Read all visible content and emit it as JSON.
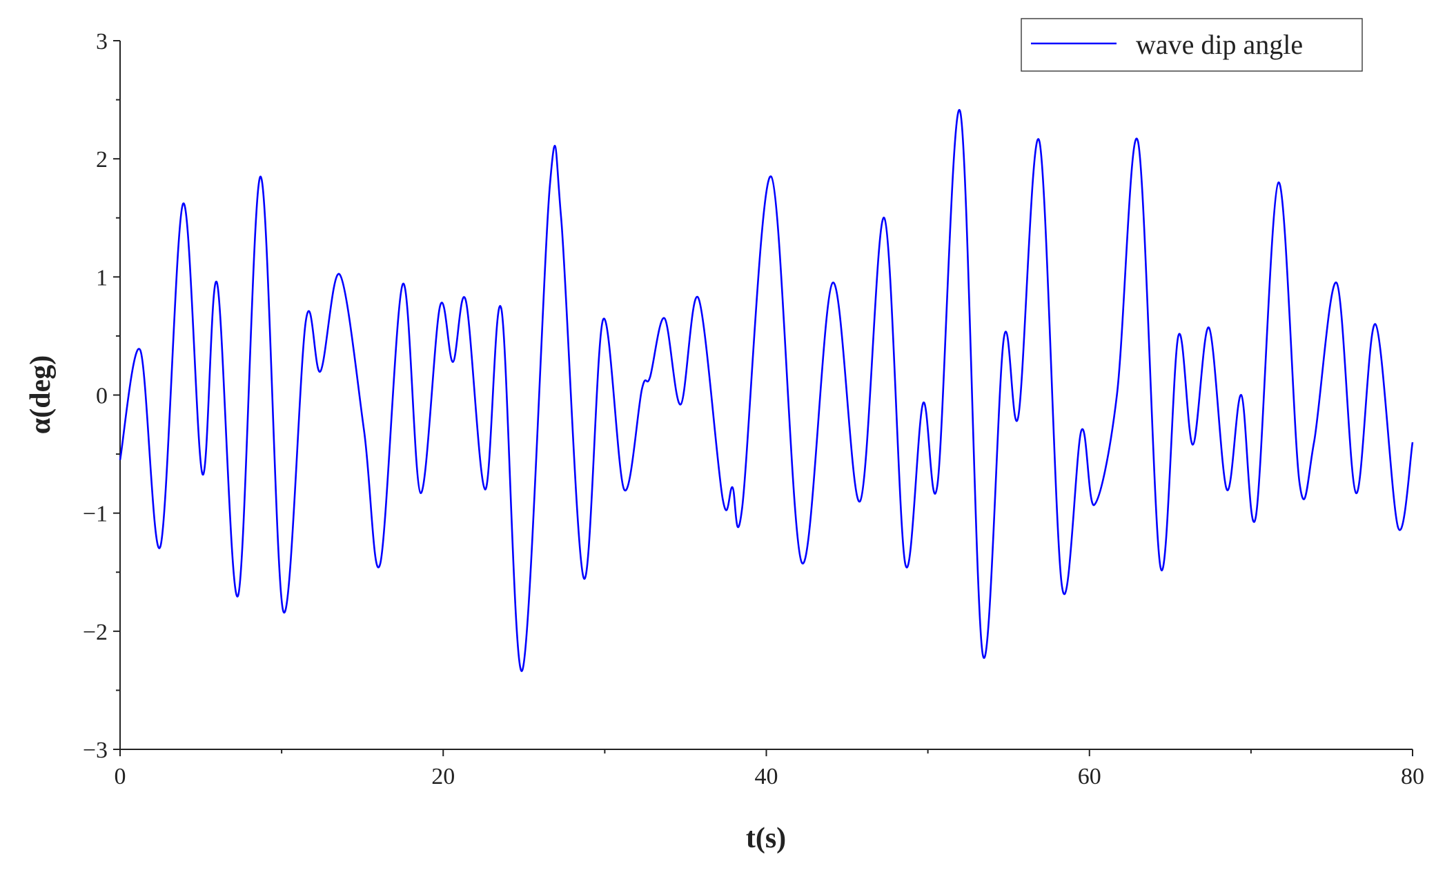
{
  "chart_data": {
    "type": "line",
    "xlabel": "t(s)",
    "ylabel": "α(deg)",
    "xlim": [
      0,
      80
    ],
    "ylim": [
      -3,
      3
    ],
    "xticks": [
      0,
      20,
      40,
      60,
      80
    ],
    "xminorticks": [
      10,
      30,
      50,
      70
    ],
    "yticks": [
      {
        "value": -3,
        "label": "−3"
      },
      {
        "value": -2,
        "label": "−2"
      },
      {
        "value": -1,
        "label": "−1"
      },
      0,
      1,
      2,
      3
    ],
    "yminorticks": [
      -2.5,
      -1.5,
      -0.5,
      0.5,
      1.5,
      2.5
    ],
    "legend": "upper right",
    "series": [
      {
        "name": "wave dip angle",
        "color": "#0000ff",
        "x": [
          0,
          1.25,
          2.5,
          3.9,
          5.1,
          6.0,
          7.3,
          8.7,
          10.1,
          11.5,
          12.4,
          13.6,
          15.1,
          16.1,
          17.5,
          18.6,
          19.8,
          20.6,
          21.4,
          22.6,
          23.6,
          24.9,
          26.6,
          27.3,
          28.7,
          29.9,
          31.2,
          32.3,
          32.8,
          33.7,
          34.7,
          35.8,
          37.3,
          37.9,
          38.5,
          40.3,
          42.2,
          44.1,
          45.8,
          47.3,
          48.6,
          49.7,
          50.6,
          52.0,
          53.4,
          54.7,
          55.6,
          56.9,
          58.3,
          59.5,
          60.3,
          61.7,
          63.0,
          64.4,
          65.5,
          66.4,
          67.4,
          68.5,
          69.4,
          70.3,
          71.7,
          73.0,
          73.9,
          75.3,
          76.5,
          77.7,
          79.1,
          80
        ],
        "values": [
          -0.55,
          0.38,
          -1.28,
          1.62,
          -0.67,
          0.95,
          -1.7,
          1.85,
          -1.83,
          0.63,
          0.2,
          1.02,
          -0.3,
          -1.43,
          0.94,
          -0.83,
          0.75,
          0.28,
          0.8,
          -0.8,
          0.73,
          -2.33,
          1.77,
          1.5,
          -1.55,
          0.64,
          -0.8,
          0.05,
          0.15,
          0.65,
          -0.08,
          0.82,
          -0.88,
          -0.78,
          -0.96,
          1.85,
          -1.42,
          0.95,
          -0.9,
          1.5,
          -1.43,
          -0.07,
          -0.75,
          2.4,
          -2.2,
          0.48,
          -0.18,
          2.15,
          -1.62,
          -0.3,
          -0.93,
          0.0,
          2.15,
          -1.46,
          0.5,
          -0.42,
          0.57,
          -0.8,
          0.0,
          -1.03,
          1.8,
          -0.74,
          -0.4,
          0.95,
          -0.83,
          0.6,
          -1.12,
          -0.4
        ]
      }
    ]
  }
}
